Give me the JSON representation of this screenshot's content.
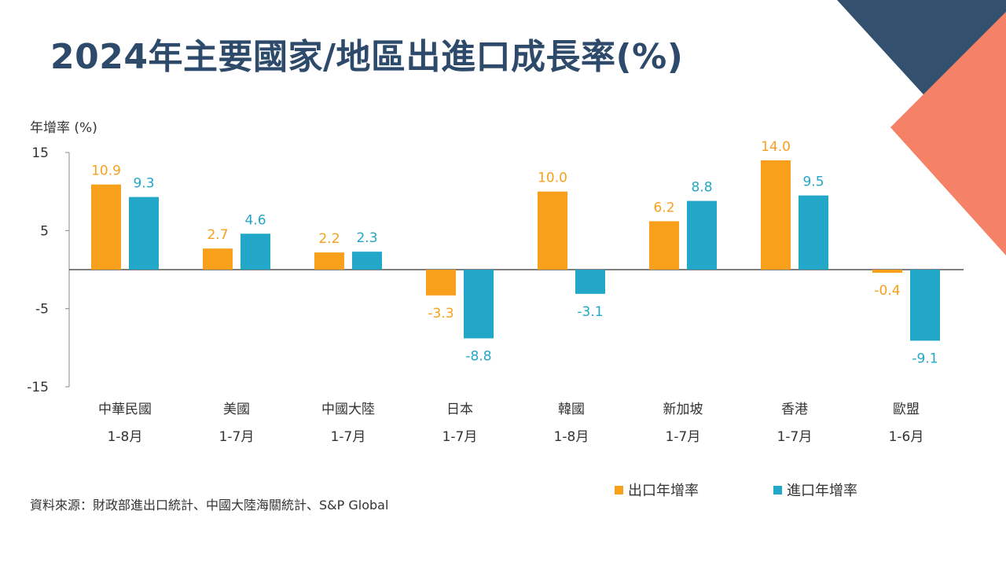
{
  "title": "2024年主要國家/地區出進口成長率(%)",
  "source_note": "資料來源：財政部進出口統計、中國大陸海關統計、S&P Global",
  "colors": {
    "export": "#F8A01C",
    "import": "#22A7C8",
    "title": "#2E4A6B",
    "deco_navy": "#34506F",
    "deco_salmon": "#F58267"
  },
  "chart_data": {
    "type": "bar",
    "ylabel": "年增率 (%)",
    "ylim": [
      -15,
      15
    ],
    "yticks": [
      "15",
      "5",
      "-5",
      "-15"
    ],
    "categories": [
      "中華民國",
      "美國",
      "中國大陸",
      "日本",
      "韓國",
      "新加坡",
      "香港",
      "歐盟"
    ],
    "periods": [
      "1-8月",
      "1-7月",
      "1-7月",
      "1-7月",
      "1-8月",
      "1-7月",
      "1-7月",
      "1-6月"
    ],
    "series": [
      {
        "name": "出口年增率",
        "values": [
          10.9,
          2.7,
          2.2,
          -3.3,
          10.0,
          6.2,
          14.0,
          -0.4
        ],
        "labels": [
          "10.9",
          "2.7",
          "2.2",
          "-3.3",
          "10.0",
          "6.2",
          "14.0",
          "-0.4"
        ]
      },
      {
        "name": "進口年增率",
        "values": [
          9.3,
          4.6,
          2.3,
          -8.8,
          -3.1,
          8.8,
          9.5,
          -9.1
        ],
        "labels": [
          "9.3",
          "4.6",
          "2.3",
          "-8.8",
          "-3.1",
          "8.8",
          "9.5",
          "-9.1"
        ]
      }
    ],
    "legend_position": "bottom-right",
    "grid": false
  }
}
